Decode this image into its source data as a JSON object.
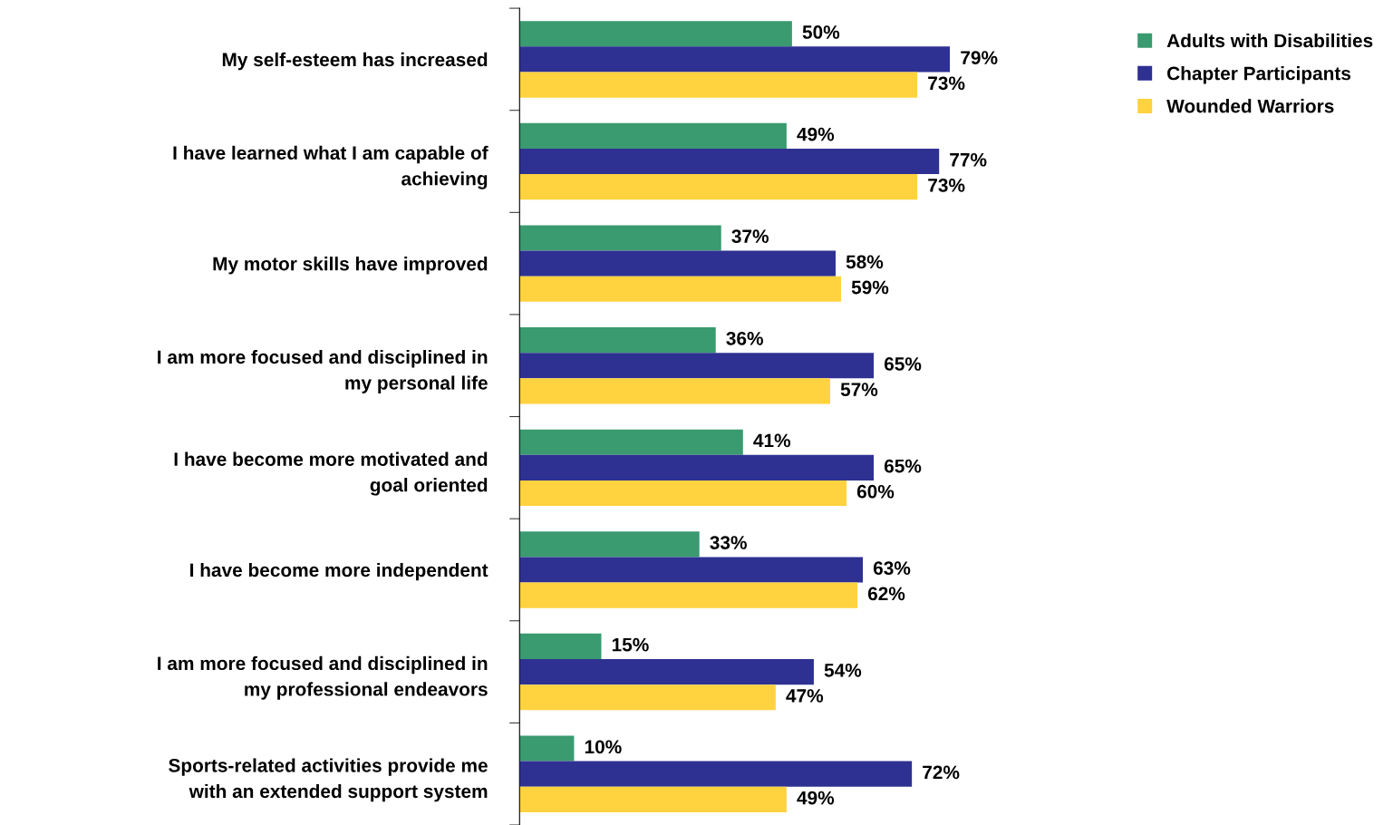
{
  "chart_data": {
    "type": "bar",
    "orientation": "horizontal",
    "categories": [
      "My self-esteem has increased",
      "I have learned what I am capable of\nachieving",
      "My motor skills have improved",
      "I am more focused and disciplined in\nmy personal life",
      "I have become more motivated and\ngoal oriented",
      "I have become more independent",
      "I am more focused and disciplined in\nmy professional endeavors",
      "Sports-related activities provide me\nwith an extended support system"
    ],
    "series": [
      {
        "name": "Adults with Disabilities",
        "color": "#3a9a70",
        "values": [
          50,
          49,
          37,
          36,
          41,
          33,
          15,
          10
        ],
        "value_labels": [
          "50%",
          "49%",
          "37%",
          "36%",
          "41%",
          "33%",
          "15%",
          "10%"
        ]
      },
      {
        "name": "Chapter Participants",
        "color": "#2e3192",
        "values": [
          79,
          77,
          58,
          65,
          65,
          63,
          54,
          72
        ],
        "value_labels": [
          "79%",
          "77%",
          "58%",
          "65%",
          "65%",
          "63%",
          "54%",
          "72%"
        ]
      },
      {
        "name": "Wounded Warriors",
        "color": "#ffd23f",
        "values": [
          73,
          73,
          59,
          57,
          60,
          62,
          47,
          49
        ],
        "value_labels": [
          "73%",
          "73%",
          "59%",
          "57%",
          "60%",
          "62%",
          "47%",
          "49%"
        ]
      }
    ],
    "legend": "top right",
    "grid": false
  }
}
